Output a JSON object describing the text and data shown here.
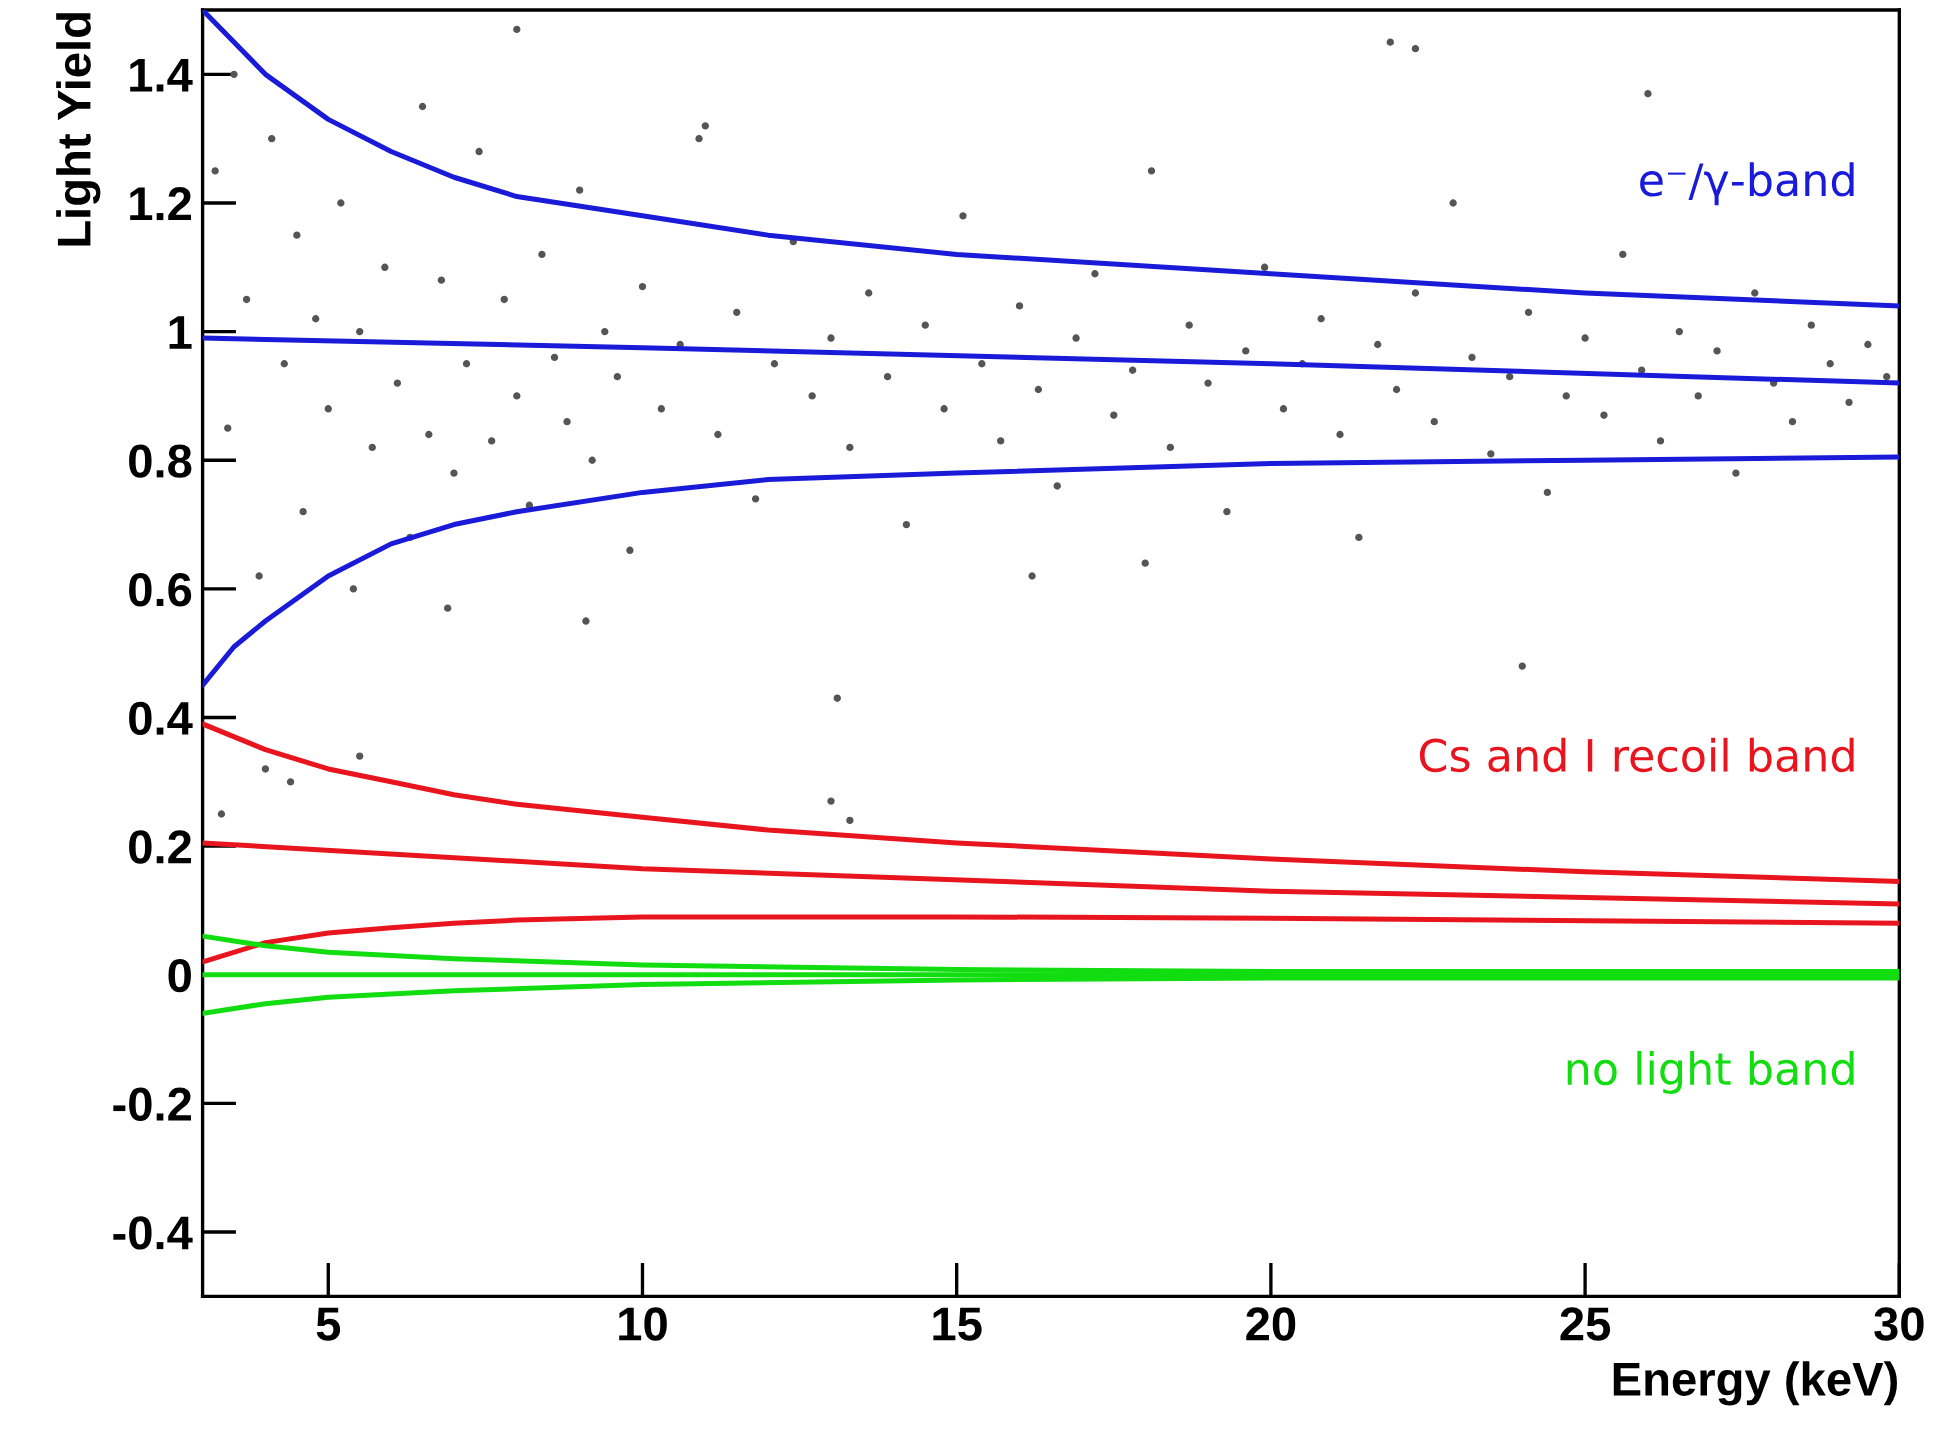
{
  "chart_data": {
    "type": "scatter",
    "xlabel": "Energy (keV)",
    "ylabel": "Light Yield",
    "xlim": [
      3,
      30
    ],
    "ylim": [
      -0.5,
      1.5
    ],
    "xticks": [
      5,
      10,
      15,
      20,
      25,
      30
    ],
    "yticks": [
      -0.4,
      -0.2,
      0,
      0.2,
      0.4,
      0.6,
      0.8,
      1,
      1.2,
      1.4
    ],
    "grid": false,
    "legend": false,
    "series": [
      {
        "color": "#555555",
        "marker": "circle",
        "x": [
          3.2,
          3.4,
          3.5,
          3.7,
          3.9,
          4.1,
          4.3,
          4.5,
          4.6,
          4.8,
          5.0,
          5.2,
          5.4,
          5.5,
          5.7,
          5.9,
          6.1,
          6.3,
          6.5,
          6.6,
          6.8,
          7.0,
          7.2,
          7.4,
          7.6,
          7.8,
          8.0,
          8.2,
          8.4,
          8.6,
          8.8,
          9.0,
          9.2,
          9.4,
          9.6,
          9.8,
          10.0,
          10.3,
          10.6,
          10.9,
          11.2,
          11.5,
          11.8,
          12.1,
          12.4,
          12.7,
          13.0,
          13.3,
          13.6,
          13.9,
          14.2,
          14.5,
          14.8,
          15.1,
          15.4,
          15.7,
          16.0,
          16.3,
          16.6,
          16.9,
          17.2,
          17.5,
          17.8,
          18.1,
          18.4,
          18.7,
          19.0,
          19.3,
          19.6,
          19.9,
          20.2,
          20.5,
          20.8,
          21.1,
          21.4,
          21.7,
          22.0,
          22.3,
          22.6,
          22.9,
          23.2,
          23.5,
          23.8,
          24.1,
          24.4,
          24.7,
          25.0,
          25.3,
          25.6,
          25.9,
          26.2,
          26.5,
          26.8,
          27.1,
          27.4,
          27.7,
          28.0,
          28.3,
          28.6,
          28.9,
          29.2,
          29.5,
          29.8,
          3.3,
          4.0,
          5.5,
          4.4,
          13.0,
          13.3,
          13.1,
          21.9,
          22.3,
          6.9,
          9.1,
          16.2,
          24.0,
          18.0,
          26.0,
          11.0,
          8.0
        ],
        "values": [
          1.25,
          0.85,
          1.4,
          1.05,
          0.62,
          1.3,
          0.95,
          1.15,
          0.72,
          1.02,
          0.88,
          1.2,
          0.6,
          1.0,
          0.82,
          1.1,
          0.92,
          0.68,
          1.35,
          0.84,
          1.08,
          0.78,
          0.95,
          1.28,
          0.83,
          1.05,
          0.9,
          0.73,
          1.12,
          0.96,
          0.86,
          1.22,
          0.8,
          1.0,
          0.93,
          0.66,
          1.07,
          0.88,
          0.98,
          1.3,
          0.84,
          1.03,
          0.74,
          0.95,
          1.14,
          0.9,
          0.99,
          0.82,
          1.06,
          0.93,
          0.7,
          1.01,
          0.88,
          1.18,
          0.95,
          0.83,
          1.04,
          0.91,
          0.76,
          0.99,
          1.09,
          0.87,
          0.94,
          1.25,
          0.82,
          1.01,
          0.92,
          0.72,
          0.97,
          1.1,
          0.88,
          0.95,
          1.02,
          0.84,
          0.68,
          0.98,
          0.91,
          1.06,
          0.86,
          1.2,
          0.96,
          0.81,
          0.93,
          1.03,
          0.75,
          0.9,
          0.99,
          0.87,
          1.12,
          0.94,
          0.83,
          1.0,
          0.9,
          0.97,
          0.78,
          1.06,
          0.92,
          0.86,
          1.01,
          0.95,
          0.89,
          0.98,
          0.93,
          0.25,
          0.32,
          0.34,
          0.3,
          0.27,
          0.24,
          0.43,
          1.45,
          1.44,
          0.57,
          0.55,
          0.62,
          0.48,
          0.64,
          1.37,
          1.32,
          1.47
        ]
      },
      {
        "type": "line",
        "name": "e⁻/γ-band",
        "color": "#1a1ad9",
        "x": [
          3,
          4,
          5,
          6,
          7,
          8,
          10,
          12,
          15,
          20,
          25,
          30
        ],
        "values": [
          1.5,
          1.4,
          1.33,
          1.28,
          1.24,
          1.21,
          1.18,
          1.15,
          1.12,
          1.09,
          1.06,
          1.04
        ]
      },
      {
        "type": "line",
        "color": "#1a1ad9",
        "x": [
          3,
          10,
          20,
          30
        ],
        "values": [
          0.99,
          0.975,
          0.95,
          0.92
        ]
      },
      {
        "type": "line",
        "color": "#1a1ad9",
        "x": [
          3,
          3.5,
          4,
          5,
          6,
          7,
          8,
          10,
          12,
          15,
          20,
          25,
          30
        ],
        "values": [
          0.45,
          0.51,
          0.55,
          0.62,
          0.67,
          0.7,
          0.72,
          0.75,
          0.77,
          0.78,
          0.795,
          0.8,
          0.805
        ]
      },
      {
        "type": "line",
        "name": "Cs and I recoil band",
        "color": "#e8141e",
        "x": [
          3,
          4,
          5,
          6,
          7,
          8,
          10,
          12,
          15,
          20,
          25,
          30
        ],
        "values": [
          0.39,
          0.35,
          0.32,
          0.3,
          0.28,
          0.265,
          0.245,
          0.225,
          0.205,
          0.18,
          0.16,
          0.145
        ]
      },
      {
        "type": "line",
        "color": "#e8141e",
        "x": [
          3,
          10,
          20,
          30
        ],
        "values": [
          0.205,
          0.165,
          0.13,
          0.11
        ]
      },
      {
        "type": "line",
        "color": "#e8141e",
        "x": [
          3,
          4,
          5,
          6,
          7,
          8,
          10,
          15,
          20,
          30
        ],
        "values": [
          0.02,
          0.05,
          0.065,
          0.073,
          0.08,
          0.085,
          0.09,
          0.09,
          0.088,
          0.08
        ]
      },
      {
        "type": "line",
        "color": "#11dd11",
        "x": [
          3,
          4,
          5,
          7,
          10,
          15,
          20,
          30
        ],
        "values": [
          0.06,
          0.045,
          0.035,
          0.025,
          0.015,
          0.008,
          0.005,
          0.005
        ]
      },
      {
        "type": "line",
        "color": "#11dd11",
        "x": [
          3,
          30
        ],
        "values": [
          0,
          0
        ]
      },
      {
        "type": "line",
        "name": "no light band",
        "color": "#11dd11",
        "x": [
          3,
          4,
          5,
          7,
          10,
          15,
          20,
          30
        ],
        "values": [
          -0.06,
          -0.045,
          -0.035,
          -0.025,
          -0.015,
          -0.008,
          -0.005,
          -0.005
        ]
      }
    ]
  }
}
